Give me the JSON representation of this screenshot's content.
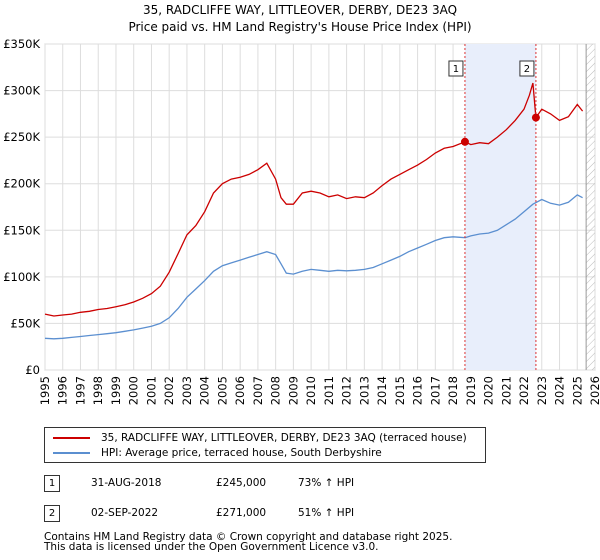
{
  "chart_data": {
    "type": "line",
    "title": "35, RADCLIFFE WAY, LITTLEOVER, DERBY, DE23 3AQ",
    "subtitle": "Price paid vs. HM Land Registry's House Price Index (HPI)",
    "xlim": [
      1995,
      2026
    ],
    "ylim": [
      0,
      350000
    ],
    "y_ticks": [
      0,
      50000,
      100000,
      150000,
      200000,
      250000,
      300000,
      350000
    ],
    "y_tick_labels": [
      "£0",
      "£50K",
      "£100K",
      "£150K",
      "£200K",
      "£250K",
      "£300K",
      "£350K"
    ],
    "x_tick_labels": [
      "1995",
      "1996",
      "1997",
      "1998",
      "1999",
      "2000",
      "2001",
      "2002",
      "2003",
      "2004",
      "2005",
      "2006",
      "2007",
      "2008",
      "2009",
      "2010",
      "2011",
      "2012",
      "2013",
      "2014",
      "2015",
      "2016",
      "2017",
      "2018",
      "2019",
      "2020",
      "2021",
      "2022",
      "2023",
      "2024",
      "2025",
      "2026"
    ],
    "shaded_period": [
      2018.67,
      2022.67
    ],
    "forecast_hatch_from": 2025.5,
    "series": [
      {
        "name": "35, RADCLIFFE WAY, LITTLEOVER, DERBY, DE23 3AQ (terraced house)",
        "color": "#cc0000",
        "x": [
          1995,
          1995.5,
          1996,
          1996.5,
          1997,
          1997.5,
          1998,
          1998.5,
          1999,
          1999.5,
          2000,
          2000.5,
          2001,
          2001.5,
          2002,
          2002.5,
          2003,
          2003.5,
          2004,
          2004.5,
          2005,
          2005.5,
          2006,
          2006.5,
          2007,
          2007.5,
          2008,
          2008.3,
          2008.6,
          2009,
          2009.5,
          2010,
          2010.5,
          2011,
          2011.5,
          2012,
          2012.5,
          2013,
          2013.5,
          2014,
          2014.5,
          2015,
          2015.5,
          2016,
          2016.5,
          2017,
          2017.5,
          2018,
          2018.67,
          2019,
          2019.5,
          2020,
          2020.5,
          2021,
          2021.5,
          2022,
          2022.3,
          2022.5,
          2022.67,
          2023,
          2023.5,
          2024,
          2024.5,
          2025,
          2025.3
        ],
        "values": [
          60000,
          58000,
          59000,
          60000,
          62000,
          63000,
          65000,
          66000,
          68000,
          70000,
          73000,
          77000,
          82000,
          90000,
          105000,
          125000,
          145000,
          155000,
          170000,
          190000,
          200000,
          205000,
          207000,
          210000,
          215000,
          222000,
          205000,
          185000,
          178000,
          178000,
          190000,
          192000,
          190000,
          186000,
          188000,
          184000,
          186000,
          185000,
          190000,
          198000,
          205000,
          210000,
          215000,
          220000,
          226000,
          233000,
          238000,
          240000,
          245000,
          242000,
          244000,
          243000,
          250000,
          258000,
          268000,
          280000,
          295000,
          308000,
          271000,
          280000,
          275000,
          268000,
          272000,
          285000,
          278000
        ]
      },
      {
        "name": "HPI: Average price, terraced house, South Derbyshire",
        "color": "#5b8fd0",
        "x": [
          1995,
          1995.5,
          1996,
          1996.5,
          1997,
          1997.5,
          1998,
          1998.5,
          1999,
          1999.5,
          2000,
          2000.5,
          2001,
          2001.5,
          2002,
          2002.5,
          2003,
          2003.5,
          2004,
          2004.5,
          2005,
          2005.5,
          2006,
          2006.5,
          2007,
          2007.5,
          2008,
          2008.3,
          2008.6,
          2009,
          2009.5,
          2010,
          2010.5,
          2011,
          2011.5,
          2012,
          2012.5,
          2013,
          2013.5,
          2014,
          2014.5,
          2015,
          2015.5,
          2016,
          2016.5,
          2017,
          2017.5,
          2018,
          2018.67,
          2019,
          2019.5,
          2020,
          2020.5,
          2021,
          2021.5,
          2022,
          2022.5,
          2023,
          2023.5,
          2024,
          2024.5,
          2025,
          2025.3
        ],
        "values": [
          34000,
          33500,
          34000,
          35000,
          36000,
          37000,
          38000,
          39000,
          40000,
          41500,
          43000,
          45000,
          47000,
          50000,
          56000,
          66000,
          78000,
          87000,
          96000,
          106000,
          112000,
          115000,
          118000,
          121000,
          124000,
          127000,
          124000,
          114000,
          104000,
          103000,
          106000,
          108000,
          107000,
          106000,
          107000,
          106500,
          107000,
          108000,
          110000,
          114000,
          118000,
          122000,
          127000,
          131000,
          135000,
          139000,
          142000,
          143000,
          142000,
          144000,
          146000,
          147000,
          150000,
          156000,
          162000,
          170000,
          178000,
          183000,
          179000,
          177000,
          180000,
          188000,
          185000
        ]
      }
    ],
    "annotations": [
      {
        "label": "1",
        "x": 2018.67,
        "value": 245000
      },
      {
        "label": "2",
        "x": 2022.67,
        "value": 271000
      }
    ]
  },
  "legend": {
    "red_label": "35, RADCLIFFE WAY, LITTLEOVER, DERBY, DE23 3AQ (terraced house)",
    "blue_label": "HPI: Average price, terraced house, South Derbyshire"
  },
  "transactions": [
    {
      "num": "1",
      "date": "31-AUG-2018",
      "price": "£245,000",
      "hpi": "73% ↑ HPI"
    },
    {
      "num": "2",
      "date": "02-SEP-2022",
      "price": "£271,000",
      "hpi": "51% ↑ HPI"
    }
  ],
  "footer": {
    "line1": "Contains HM Land Registry data © Crown copyright and database right 2025.",
    "line2": "This data is licensed under the Open Government Licence v3.0."
  }
}
